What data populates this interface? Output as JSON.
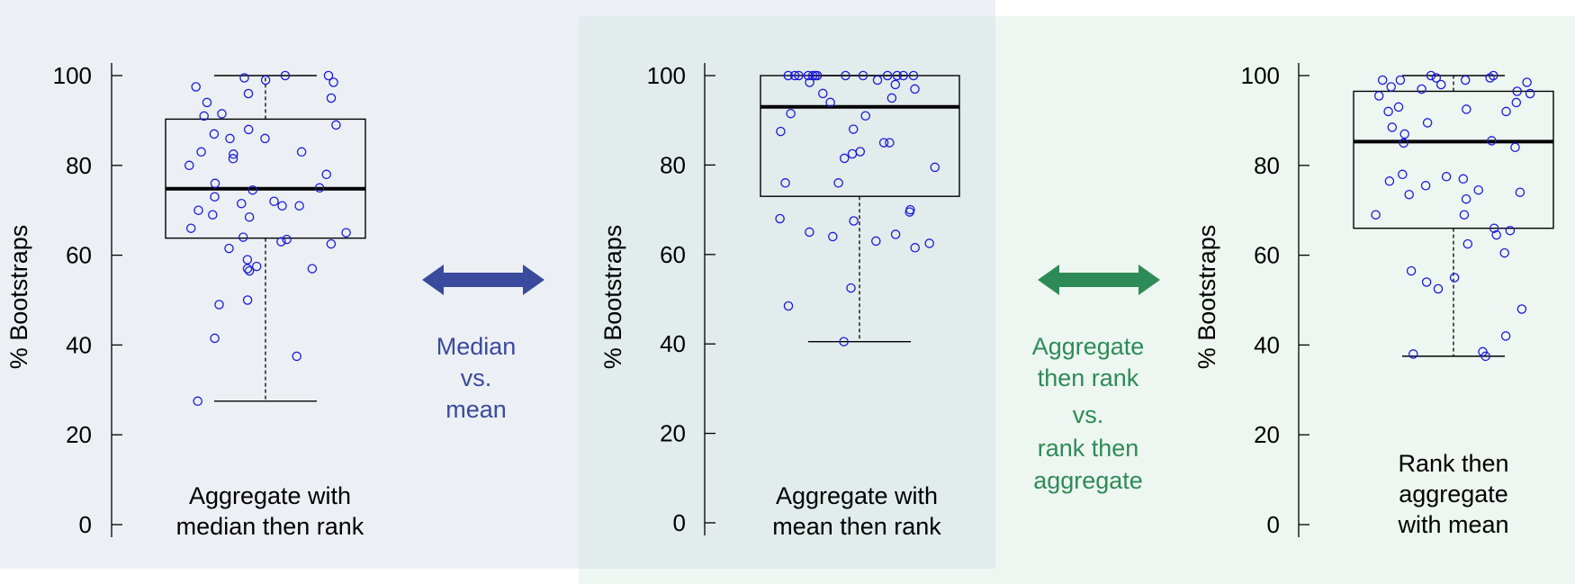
{
  "colors": {
    "background_left": "#ecf0f4",
    "background_right": "#eef6f2",
    "background_middle": "#e2ecec",
    "point_color": "#1a1adc",
    "comparison_1_color": "#3a4a9c",
    "comparison_2_color": "#2e8b57",
    "box_line": "#000000"
  },
  "comparisons": [
    {
      "icon": "double-arrow-icon",
      "color": "#3a4a9c",
      "lines": [
        "Median",
        "vs.",
        "mean"
      ]
    },
    {
      "icon": "double-arrow-icon",
      "color": "#2e8b57",
      "lines": [
        "Aggregate",
        "then rank",
        "vs.",
        "rank then",
        "aggregate"
      ]
    }
  ],
  "chart_data": [
    {
      "type": "box",
      "ylabel": "% Bootstraps",
      "ylim": [
        0,
        100
      ],
      "yticks": [
        0,
        20,
        40,
        60,
        80,
        100
      ],
      "caption": [
        "Aggregate with",
        "median then rank"
      ],
      "box": {
        "whisker_low": 27.5,
        "q1": 63.8,
        "median": 74.8,
        "q3": 90.3,
        "whisker_high": 100
      },
      "points": [
        100,
        98.5,
        97.5,
        96,
        95,
        94,
        99.5,
        99,
        100,
        91.5,
        91,
        89,
        88,
        87,
        86,
        86,
        83,
        83,
        82.5,
        81.5,
        80,
        78,
        76,
        75,
        74.5,
        73,
        72,
        71.5,
        71,
        71,
        70,
        69,
        68.5,
        66,
        65,
        64,
        63.5,
        63,
        62.5,
        61.5,
        59,
        57.5,
        57,
        57,
        56.5,
        50,
        49,
        41.5,
        37.5,
        27.5
      ]
    },
    {
      "type": "box",
      "ylabel": "% Bootstraps",
      "ylim": [
        0,
        100
      ],
      "yticks": [
        0,
        20,
        40,
        60,
        80,
        100
      ],
      "caption": [
        "Aggregate with",
        "mean then rank"
      ],
      "box": {
        "whisker_low": 40.5,
        "q1": 73,
        "median": 93,
        "q3": 100,
        "whisker_high": 100
      },
      "points": [
        100,
        100,
        100,
        100,
        100,
        100,
        100,
        100,
        100,
        100,
        100,
        100,
        100,
        99,
        98.5,
        98,
        97,
        96,
        95,
        94,
        91.5,
        91,
        88,
        87.5,
        85,
        85,
        83,
        82.5,
        81.5,
        79.5,
        76,
        76,
        70,
        69.5,
        68,
        67.5,
        65,
        64.5,
        64,
        62.5,
        63,
        61.5,
        52.5,
        48.5,
        40.5
      ]
    },
    {
      "type": "box",
      "ylabel": "% Bootstraps",
      "ylim": [
        0,
        100
      ],
      "yticks": [
        0,
        20,
        40,
        60,
        80,
        100
      ],
      "caption": [
        "Rank then",
        "aggregate",
        "with mean"
      ],
      "box": {
        "whisker_low": 37.5,
        "q1": 66,
        "median": 85.3,
        "q3": 96.5,
        "whisker_high": 100
      },
      "points": [
        100,
        100,
        99.5,
        99.5,
        99,
        99,
        99,
        98.5,
        98,
        97.5,
        97,
        96.5,
        96,
        95.5,
        94,
        93,
        92.5,
        92,
        92,
        89.5,
        88.5,
        87,
        85.5,
        85,
        84,
        78,
        77.5,
        77,
        76.5,
        75.5,
        74.5,
        74,
        73.5,
        72.5,
        69,
        69,
        66,
        65.5,
        64.5,
        62.5,
        60.5,
        56.5,
        55,
        54,
        52.5,
        48,
        42,
        38.5,
        38,
        37.5
      ]
    }
  ]
}
